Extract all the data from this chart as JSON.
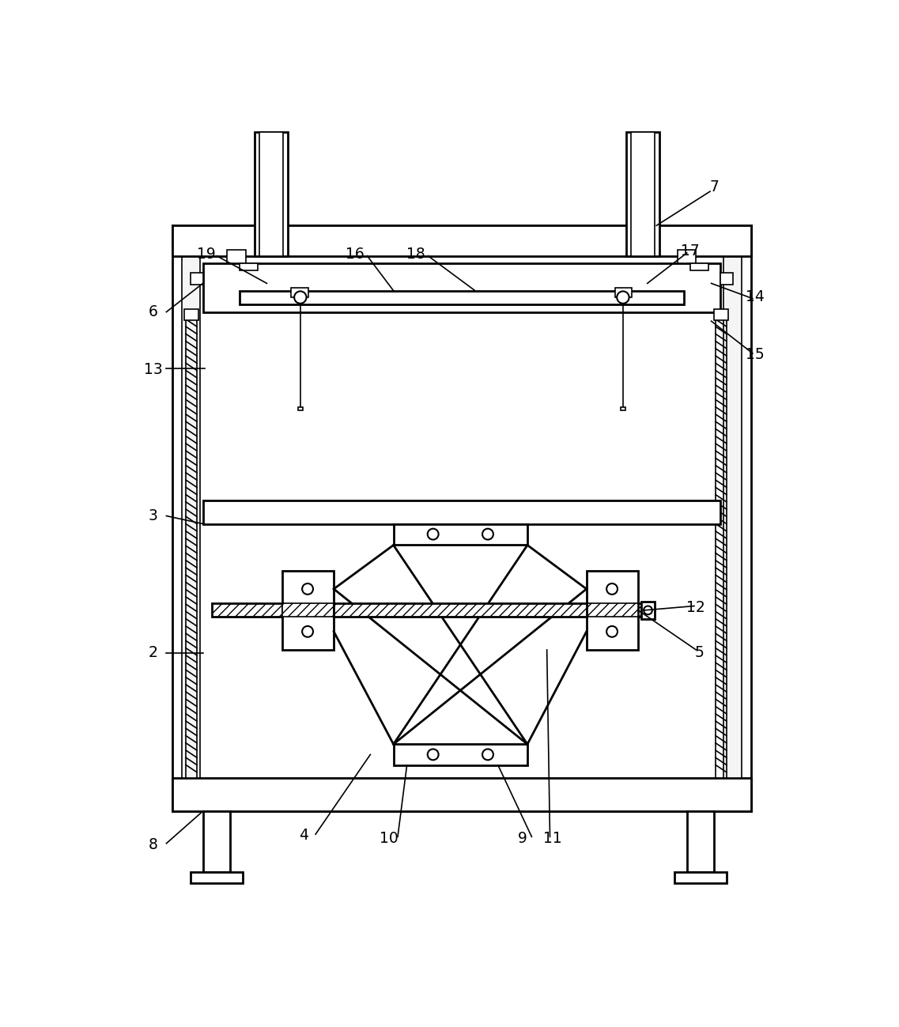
{
  "bg_color": "#ffffff",
  "lw_main": 2.0,
  "lw_thin": 1.2,
  "lw_med": 1.6
}
